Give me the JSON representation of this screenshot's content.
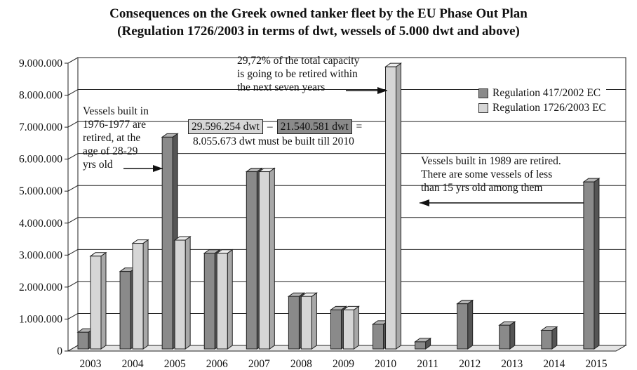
{
  "chart_data": {
    "type": "bar",
    "title": "Consequences on the Greek owned tanker fleet by the EU Phase Out Plan",
    "subtitle": "(Regulation 1726/2003 in terms of dwt, wessels of 5.000 dwt and above)",
    "categories": [
      "2003",
      "2004",
      "2005",
      "2006",
      "2007",
      "2008",
      "2009",
      "2010",
      "2011",
      "2012",
      "2013",
      "2014",
      "2015"
    ],
    "series": [
      {
        "name": "Regulation 417/2002 EC",
        "color": "#8a8a8a",
        "values": [
          500000,
          2400000,
          6600000,
          2970000,
          5520000,
          1620000,
          1200000,
          750000,
          200000,
          1390000,
          720000,
          560000,
          5200000
        ]
      },
      {
        "name": "Regulation 1726/2003 EC",
        "color": "#d6d6d6",
        "values": [
          2880000,
          3280000,
          3380000,
          2970000,
          5520000,
          1620000,
          1200000,
          8800000,
          null,
          null,
          null,
          null,
          null
        ]
      }
    ],
    "ylim": [
      0,
      9000000
    ],
    "yticks": [
      0,
      1000000,
      2000000,
      3000000,
      4000000,
      5000000,
      6000000,
      7000000,
      8000000,
      9000000
    ],
    "ytick_labels": [
      "0",
      "1.000.000",
      "2.000.000",
      "3.000.000",
      "4.000.000",
      "5.000.000",
      "6.000.000",
      "7.000.000",
      "8.000.000",
      "9.000.000"
    ],
    "grid": true,
    "legend_position": "top-right"
  },
  "annotations": {
    "left_note": [
      "Vessels built in",
      "1976-1977 are",
      "retired, at the",
      "age of 28-29",
      "yrs old"
    ],
    "top_note": [
      "29,72% of the total capacity",
      "is going to be retired within",
      "the next seven years"
    ],
    "box_light": "29.596.254 dwt",
    "minus": "–",
    "box_dark": "21.540.581 dwt",
    "equals": "=",
    "box_result": "8.055.673 dwt must be built till 2010",
    "right_note": [
      "Vessels built in 1989 are retired.",
      "There are some vessels of less",
      "than 15 yrs old among them"
    ]
  }
}
